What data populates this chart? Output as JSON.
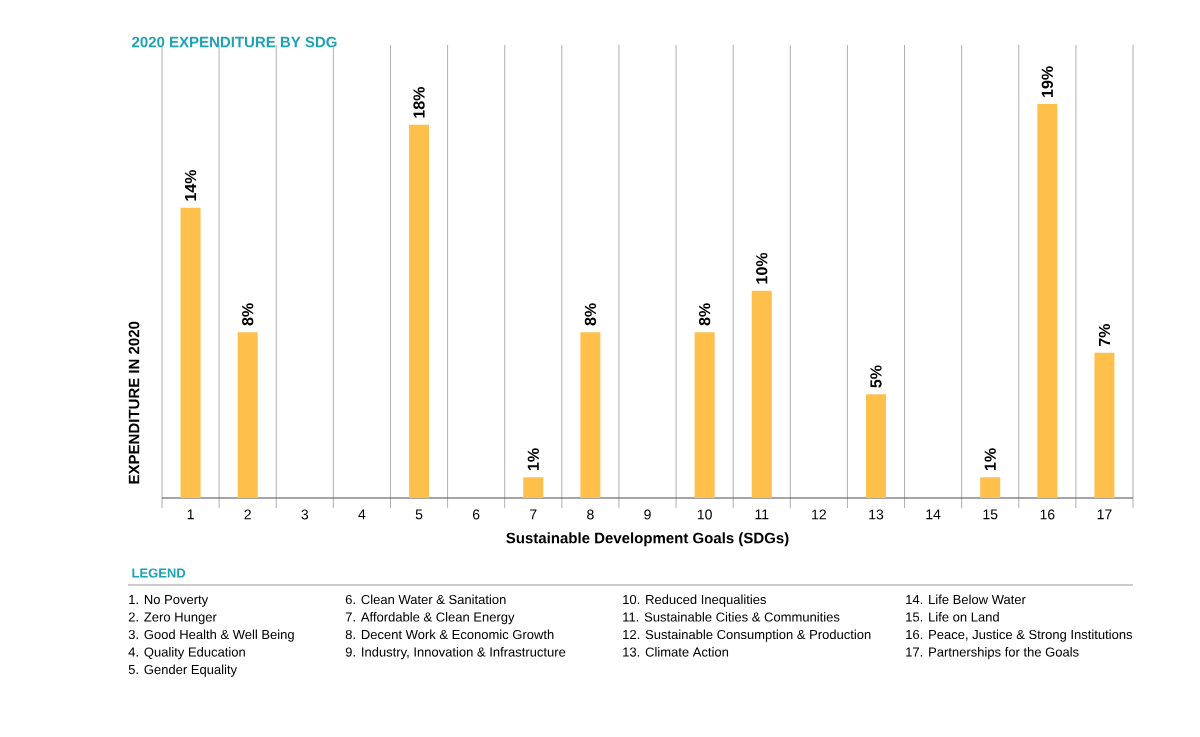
{
  "chart_data": {
    "type": "bar",
    "title": "2020 EXPENDITURE BY SDG",
    "xlabel": "Sustainable Development Goals (SDGs)",
    "ylabel": "EXPENDITURE IN 2020",
    "categories": [
      "1",
      "2",
      "3",
      "4",
      "5",
      "6",
      "7",
      "8",
      "9",
      "10",
      "11",
      "12",
      "13",
      "14",
      "15",
      "16",
      "17"
    ],
    "values": [
      14,
      8,
      null,
      null,
      18,
      null,
      1,
      8,
      null,
      8,
      10,
      null,
      5,
      null,
      1,
      19,
      7
    ],
    "value_labels": [
      "14%",
      "8%",
      null,
      null,
      "18%",
      null,
      "1%",
      "8%",
      null,
      "8%",
      "10%",
      null,
      "5%",
      null,
      "1%",
      "19%",
      "7%"
    ],
    "color": "#ffc04b",
    "grid": "x",
    "annotations": [
      "LEGEND",
      "1. No Poverty",
      "2. Zero Hunger",
      "3. Good Health & Well Being",
      "4. Quality Education",
      "5. Gender Equality",
      "6. Clean Water & Sanitation",
      "7. Affordable & Clean Energy",
      "8. Decent Work & Economic Growth",
      "9. Industry, Innovation & Infrastructure",
      "10. Reduced Inequalities",
      "11. Sustainable Cities & Communities",
      "12. Sustainable Consumption &  Production",
      "13. Climate Action",
      "14. Life Below Water",
      "15. Life on Land",
      "16. Peace, Justice & Strong Institutions",
      "17. Partnerships for the Goals"
    ]
  }
}
